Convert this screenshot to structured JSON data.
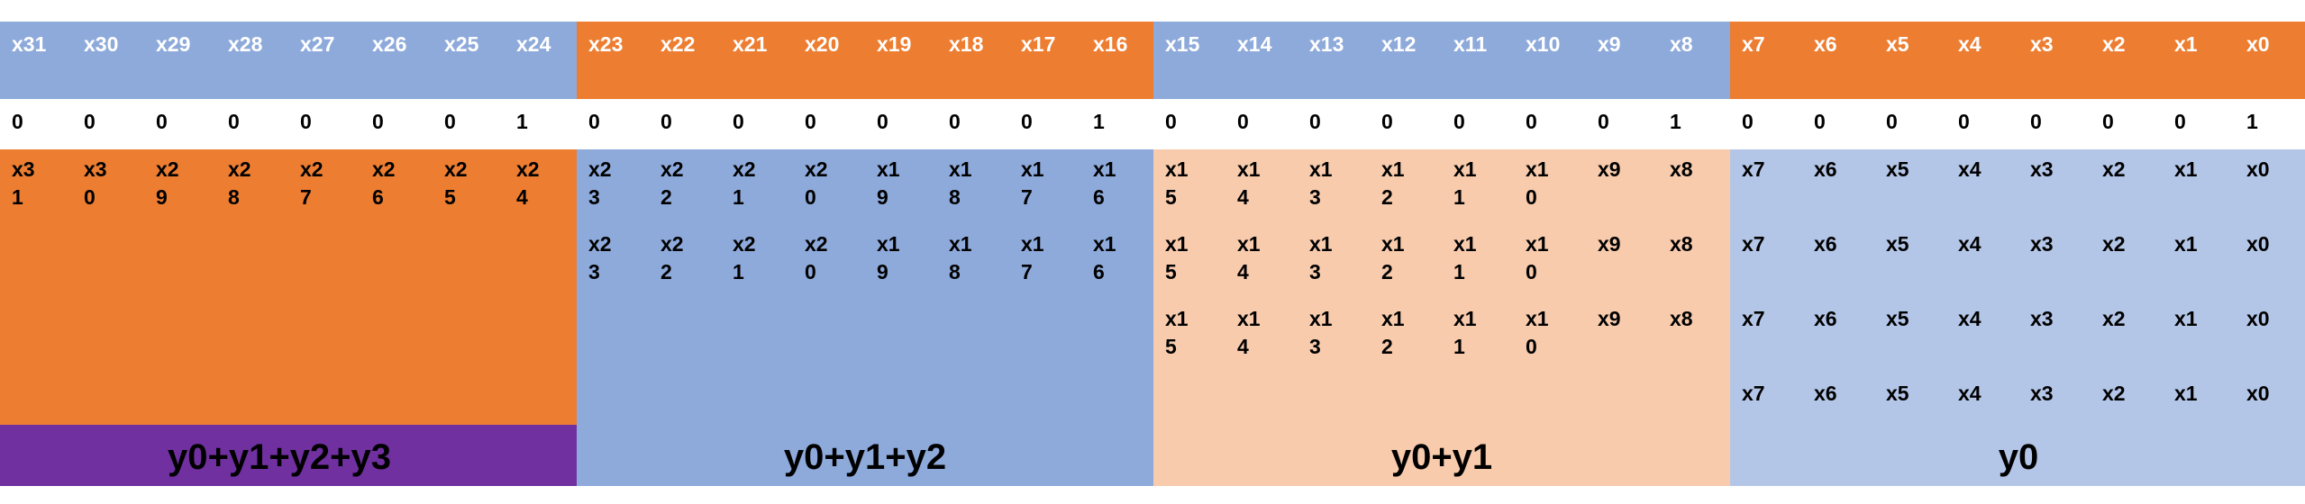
{
  "colors": {
    "blue": "#8eaadb",
    "orange": "#ed7d31",
    "peach": "#f8cbad",
    "light_blue": "#b4c6e7",
    "purple": "#7030a0",
    "white": "#ffffff"
  },
  "header_bits": [
    "x31",
    "x30",
    "x29",
    "x28",
    "x27",
    "x26",
    "x25",
    "x24",
    "x23",
    "x22",
    "x21",
    "x20",
    "x19",
    "x18",
    "x17",
    "x16",
    "x15",
    "x14",
    "x13",
    "x12",
    "x11",
    "x10",
    "x9",
    "x8",
    "x7",
    "x6",
    "x5",
    "x4",
    "x3",
    "x2",
    "x1",
    "x0"
  ],
  "header_group_colors": [
    "blue",
    "orange",
    "blue",
    "orange"
  ],
  "multiplier_bits": [
    "0",
    "0",
    "0",
    "0",
    "0",
    "0",
    "0",
    "1",
    "0",
    "0",
    "0",
    "0",
    "0",
    "0",
    "0",
    "1",
    "0",
    "0",
    "0",
    "0",
    "0",
    "0",
    "0",
    "1",
    "0",
    "0",
    "0",
    "0",
    "0",
    "0",
    "0",
    "1"
  ],
  "partial_products": [
    [
      "x3\n1",
      "x3\n0",
      "x2\n9",
      "x2\n8",
      "x2\n7",
      "x2\n6",
      "x2\n5",
      "x2\n4",
      "x2\n3",
      "x2\n2",
      "x2\n1",
      "x2\n0",
      "x1\n9",
      "x1\n8",
      "x1\n7",
      "x1\n6",
      "x1\n5",
      "x1\n4",
      "x1\n3",
      "x1\n2",
      "x1\n1",
      "x1\n0",
      "x9",
      "x8",
      "x7",
      "x6",
      "x5",
      "x4",
      "x3",
      "x2",
      "x1",
      "x0"
    ],
    [
      "x2\n3",
      "x2\n2",
      "x2\n1",
      "x2\n0",
      "x1\n9",
      "x1\n8",
      "x1\n7",
      "x1\n6",
      "x1\n5",
      "x1\n4",
      "x1\n3",
      "x1\n2",
      "x1\n1",
      "x1\n0",
      "x9",
      "x8",
      "x7",
      "x6",
      "x5",
      "x4",
      "x3",
      "x2",
      "x1",
      "x0"
    ],
    [
      "x1\n5",
      "x1\n4",
      "x1\n3",
      "x1\n2",
      "x1\n1",
      "x1\n0",
      "x9",
      "x8",
      "x7",
      "x6",
      "x5",
      "x4",
      "x3",
      "x2",
      "x1",
      "x0"
    ],
    [
      "x7",
      "x6",
      "x5",
      "x4",
      "x3",
      "x2",
      "x1",
      "x0"
    ]
  ],
  "byte_lane_colors": [
    "orange",
    "blue",
    "peach",
    "light_blue"
  ],
  "sum_labels": [
    "y0+y1+y2+y3",
    "y0+y1+y2",
    "y0+y1",
    "y0"
  ],
  "sum_label_colors": [
    "purple",
    "blue",
    "peach",
    "light_blue"
  ]
}
